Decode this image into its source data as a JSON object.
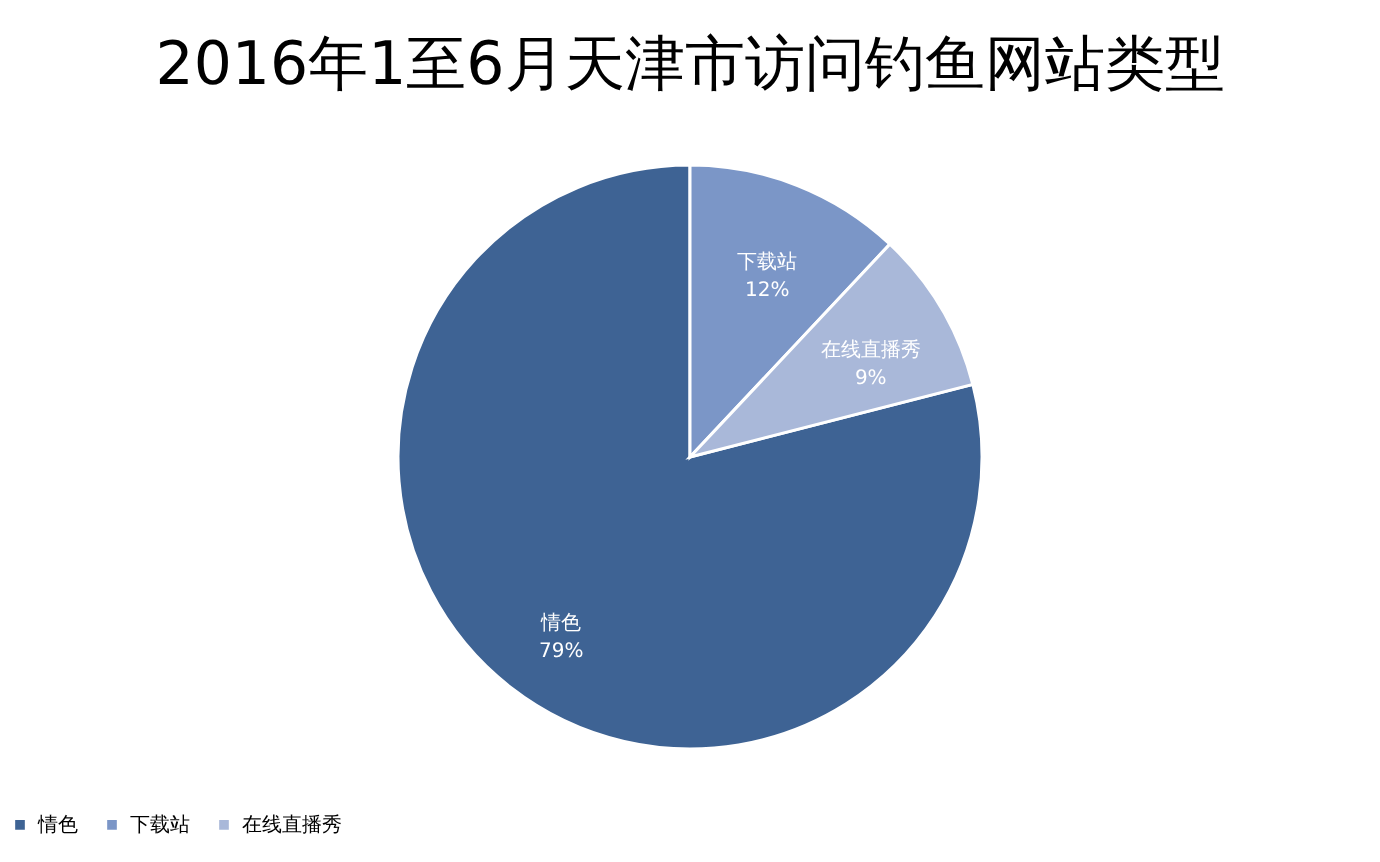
{
  "chart_data": {
    "type": "pie",
    "title": "2016年1至6月天津市访问钓鱼网站类型",
    "categories": [
      "情色",
      "下载站",
      "在线直播秀"
    ],
    "values": [
      79,
      12,
      9
    ],
    "colors": [
      "#3e6394",
      "#7b96c7",
      "#a9b8d9"
    ],
    "value_labels": [
      "79%",
      "12%",
      "9%"
    ],
    "legend": "bottom"
  }
}
